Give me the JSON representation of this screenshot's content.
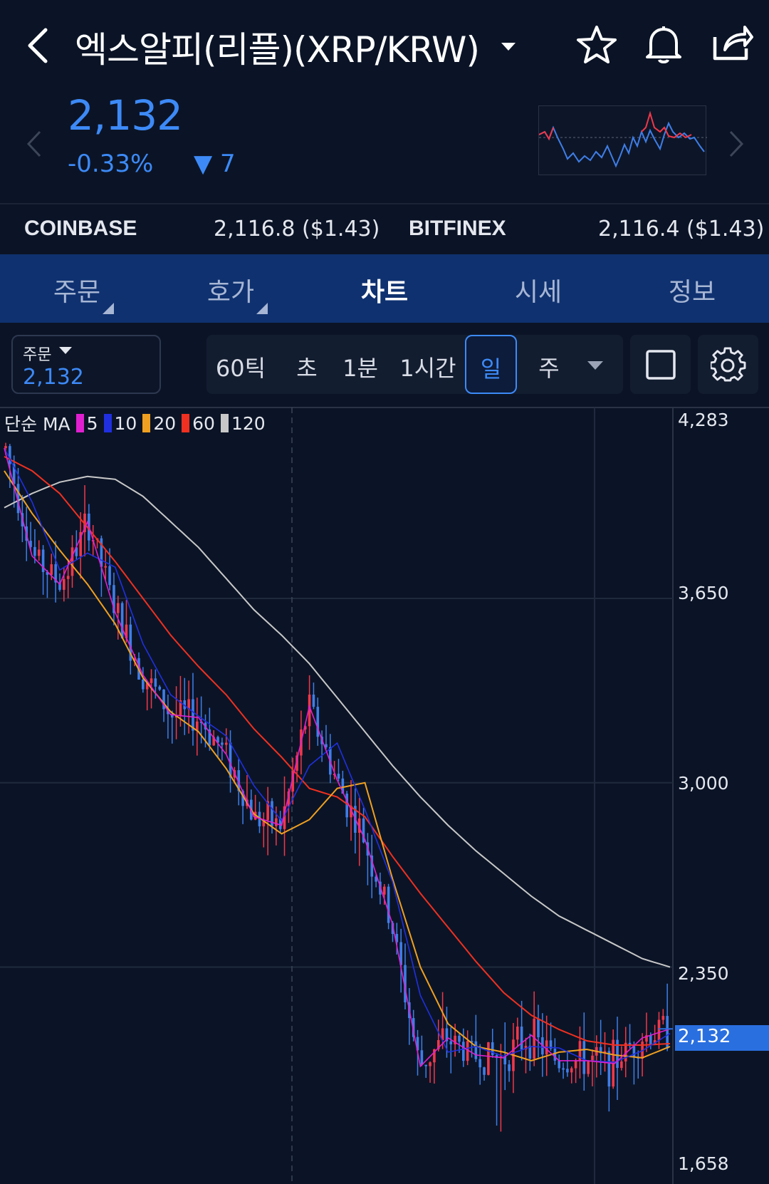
{
  "header": {
    "title": "엑스알피(리플)(XRP/KRW)",
    "back_icon": "back-chevron-icon",
    "dropdown_icon": "caret-down-icon",
    "favorite_icon": "star-icon",
    "alert_icon": "bell-icon",
    "share_icon": "share-icon"
  },
  "price": {
    "current": "2,132",
    "change_percent": "-0.33%",
    "change_amount": "▼ 7",
    "color": "#3d8af7"
  },
  "exchanges": [
    {
      "name": "COINBASE",
      "value": "2,116.8 ($1.43)"
    },
    {
      "name": "BITFINEX",
      "value": "2,116.4 ($1.43)"
    }
  ],
  "tabs": [
    {
      "label": "주문"
    },
    {
      "label": "호가"
    },
    {
      "label": "차트",
      "active": true
    },
    {
      "label": "시세"
    },
    {
      "label": "정보"
    }
  ],
  "controls": {
    "order_label": "주문",
    "order_price": "2,132",
    "periods": [
      "60틱",
      "초",
      "1분",
      "1시간",
      "일",
      "주"
    ],
    "selected_period": "일"
  },
  "ma_legend": {
    "label": "단순 MA",
    "items": [
      {
        "period": "5",
        "color": "#e020d0"
      },
      {
        "period": "10",
        "color": "#2030e0"
      },
      {
        "period": "20",
        "color": "#f0a020"
      },
      {
        "period": "60",
        "color": "#f03020"
      },
      {
        "period": "120",
        "color": "#c8c8c8"
      }
    ]
  },
  "chart_data": {
    "type": "candlestick",
    "y_tick_labels": [
      "4,283",
      "3,650",
      "3,000",
      "2,350",
      "1,658"
    ],
    "ylim": [
      1658,
      4283
    ],
    "current_price_label": "2,132",
    "up_color": "#f0384a",
    "down_color": "#3f7ee8",
    "ma120": [
      3970,
      4020,
      4060,
      4080,
      4070,
      4010,
      3920,
      3830,
      3720,
      3610,
      3520,
      3420,
      3300,
      3180,
      3060,
      2950,
      2850,
      2760,
      2680,
      2600,
      2530,
      2480,
      2430,
      2380,
      2350
    ],
    "ma60": [
      4150,
      4100,
      4020,
      3900,
      3780,
      3650,
      3520,
      3410,
      3310,
      3190,
      3090,
      2980,
      2950,
      2880,
      2740,
      2610,
      2490,
      2370,
      2260,
      2180,
      2130,
      2090,
      2075,
      2075,
      2080
    ],
    "ma20": [
      4100,
      3950,
      3820,
      3700,
      3560,
      3370,
      3250,
      3180,
      3050,
      2890,
      2820,
      2870,
      2980,
      3000,
      2660,
      2350,
      2150,
      2070,
      2050,
      2020,
      2050,
      2060,
      2040,
      2030,
      2070
    ],
    "closes": [
      4180,
      3800,
      3700,
      3920,
      3600,
      3380,
      3240,
      3230,
      3100,
      2880,
      2850,
      3270,
      3010,
      2800,
      2500,
      2000,
      2100,
      2040,
      2030,
      2110,
      2020,
      2020,
      2010,
      2100,
      2132
    ]
  }
}
